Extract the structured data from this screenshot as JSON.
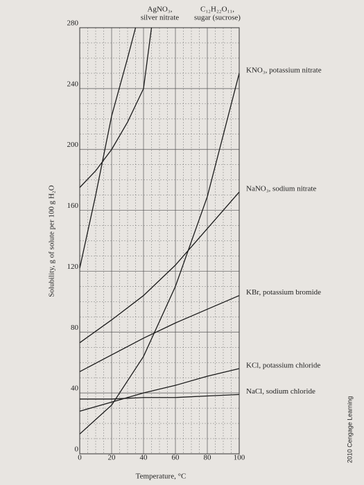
{
  "chart_data": {
    "type": "line",
    "xlabel": "Temperature, °C",
    "ylabel": "Solubility, g of solute per 100 g H₂O",
    "credit": "2010 Cengage Learning",
    "xlim": [
      0,
      100
    ],
    "xticks": [
      0,
      20,
      40,
      60,
      80,
      100
    ],
    "ylim": [
      0,
      280
    ],
    "yticks": [
      0,
      40,
      80,
      120,
      160,
      200,
      240,
      280
    ],
    "grid": true,
    "series": [
      {
        "label": [
          "AgNO₃,",
          "silver nitrate"
        ],
        "color": "#1a1a1a",
        "x": [
          0,
          10,
          20,
          30,
          35
        ],
        "values": [
          122,
          170,
          222,
          260,
          280
        ]
      },
      {
        "label": [
          "C₁₂H₂₂O₁₁,",
          "sugar (sucrose)"
        ],
        "color": "#1a1a1a",
        "x": [
          0,
          10,
          20,
          30,
          40,
          45
        ],
        "values": [
          175,
          186,
          200,
          218,
          240,
          280
        ]
      },
      {
        "name": "KNO₃, potassium nitrate",
        "color": "#1a1a1a",
        "x": [
          0,
          20,
          40,
          60,
          80,
          100
        ],
        "values": [
          13,
          32,
          64,
          110,
          169,
          250
        ]
      },
      {
        "name": "NaNO₃, sodium nitrate",
        "color": "#1a1a1a",
        "x": [
          0,
          20,
          40,
          60,
          80,
          100
        ],
        "values": [
          73,
          88,
          104,
          124,
          148,
          172
        ]
      },
      {
        "name": "KBr, potassium bromide",
        "color": "#1a1a1a",
        "x": [
          0,
          20,
          40,
          60,
          80,
          100
        ],
        "values": [
          54,
          65,
          76,
          86,
          95,
          104
        ]
      },
      {
        "name": "KCl, potassium chloride",
        "color": "#1a1a1a",
        "x": [
          0,
          20,
          40,
          60,
          80,
          100
        ],
        "values": [
          28,
          34,
          40,
          45,
          51,
          56
        ]
      },
      {
        "name": "NaCl, sodium chloride",
        "color": "#1a1a1a",
        "x": [
          0,
          20,
          40,
          60,
          80,
          100
        ],
        "values": [
          36,
          36,
          37,
          37,
          38,
          39
        ]
      }
    ]
  }
}
